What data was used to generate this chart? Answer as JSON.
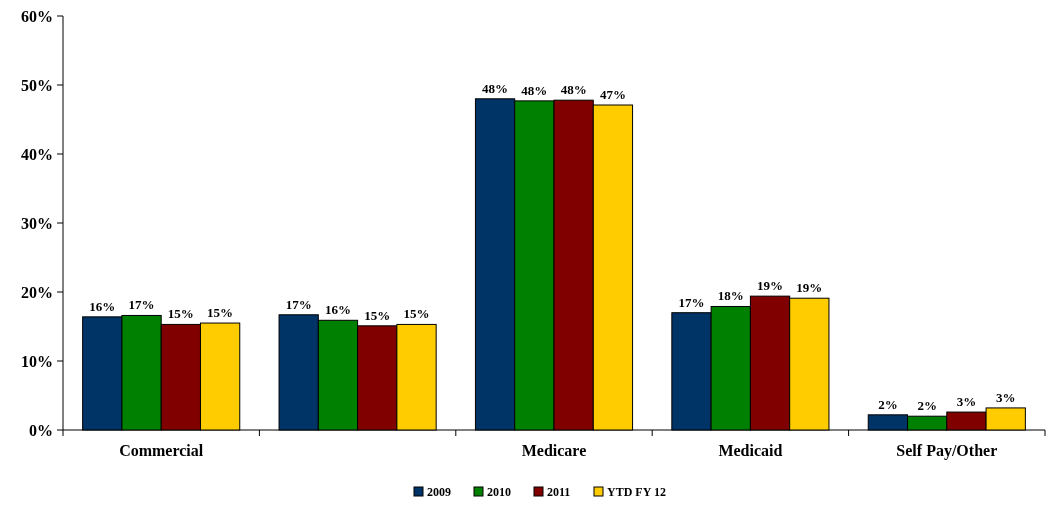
{
  "chart_data": {
    "type": "bar",
    "categories": [
      "Commercial",
      null,
      "Medicare",
      "Medicaid",
      "Self Pay/Other"
    ],
    "series": [
      {
        "name": "2009",
        "color": "#003366",
        "values": [
          16.4,
          16.7,
          48.0,
          17.0,
          2.2
        ],
        "value_labels": [
          "16%",
          "17%",
          "48%",
          "17%",
          "2%"
        ]
      },
      {
        "name": "2010",
        "color": "#008000",
        "values": [
          16.6,
          15.9,
          47.7,
          17.9,
          2.0
        ],
        "value_labels": [
          "17%",
          "16%",
          "48%",
          "18%",
          "2%"
        ]
      },
      {
        "name": "2011",
        "color": "#800000",
        "values": [
          15.3,
          15.1,
          47.8,
          19.4,
          2.6
        ],
        "value_labels": [
          "15%",
          "15%",
          "48%",
          "19%",
          "3%"
        ]
      },
      {
        "name": "YTD FY 12",
        "color": "#ffcc00",
        "values": [
          15.5,
          15.3,
          47.1,
          19.1,
          3.2
        ],
        "value_labels": [
          "15%",
          "15%",
          "47%",
          "19%",
          "3%"
        ]
      }
    ],
    "ylim": [
      0,
      60
    ],
    "yticks": [
      {
        "value": 0,
        "label": "0%"
      },
      {
        "value": 10,
        "label": "10%"
      },
      {
        "value": 20,
        "label": "20%"
      },
      {
        "value": 30,
        "label": "30%"
      },
      {
        "value": 40,
        "label": "40%"
      },
      {
        "value": 50,
        "label": "50%"
      },
      {
        "value": 60,
        "label": "60%"
      }
    ],
    "legend": "bottom"
  }
}
